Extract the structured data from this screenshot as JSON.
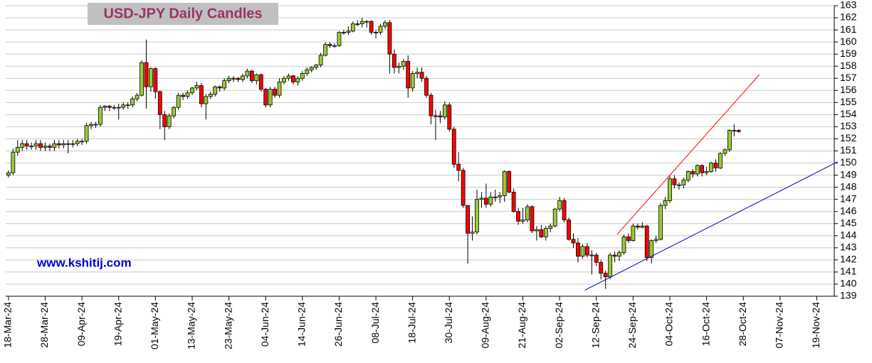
{
  "chart_data": {
    "type": "candlestick",
    "title": "USD-JPY Daily Candles",
    "annotation": "www.kshitij.com",
    "categories": [
      "18-Mar-24",
      null,
      null,
      null,
      null,
      null,
      null,
      null,
      "28-Mar-24",
      null,
      null,
      null,
      null,
      null,
      null,
      null,
      "09-Apr-24",
      null,
      null,
      null,
      null,
      null,
      null,
      null,
      "19-Apr-24",
      null,
      null,
      null,
      null,
      null,
      null,
      null,
      "01-May-24",
      null,
      null,
      null,
      null,
      null,
      null,
      null,
      "13-May-24",
      null,
      null,
      null,
      null,
      null,
      null,
      null,
      "23-May-24",
      null,
      null,
      null,
      null,
      null,
      null,
      null,
      "04-Jun-24",
      null,
      null,
      null,
      null,
      null,
      null,
      null,
      "14-Jun-24",
      null,
      null,
      null,
      null,
      null,
      null,
      null,
      "26-Jun-24",
      null,
      null,
      null,
      null,
      null,
      null,
      null,
      "08-Jul-24",
      null,
      null,
      null,
      null,
      null,
      null,
      null,
      "18-Jul-24",
      null,
      null,
      null,
      null,
      null,
      null,
      null,
      "30-Jul-24",
      null,
      null,
      null,
      null,
      null,
      null,
      null,
      "09-Aug-24",
      null,
      null,
      null,
      null,
      null,
      null,
      null,
      "21-Aug-24",
      null,
      null,
      null,
      null,
      null,
      null,
      null,
      "02-Sep-24",
      null,
      null,
      null,
      null,
      null,
      null,
      null,
      "12-Sep-24",
      null,
      null,
      null,
      null,
      null,
      null,
      null,
      "24-Sep-24",
      null,
      null,
      null,
      null,
      null,
      null,
      null,
      "04-Oct-24",
      null,
      null,
      null,
      null,
      null,
      null,
      null,
      "16-Oct-24",
      null,
      null,
      null,
      null,
      null,
      null,
      null,
      "28-Oct-24",
      null,
      null,
      null,
      null,
      null,
      null,
      null,
      "07-Nov-24",
      null,
      null,
      null,
      null,
      null,
      null,
      null,
      "19-Nov-24",
      null,
      null,
      null
    ],
    "series": [
      {
        "up_color": "#99cc33",
        "down_color": "#ff0000",
        "outline": "#000000",
        "ohlc": [
          [
            149.0,
            149.4,
            148.8,
            149.2
          ],
          [
            149.2,
            151.2,
            149.0,
            150.9
          ],
          [
            150.9,
            151.9,
            150.6,
            151.3
          ],
          [
            151.3,
            151.9,
            151.0,
            151.6
          ],
          [
            151.6,
            151.9,
            151.1,
            151.4
          ],
          [
            151.4,
            151.7,
            151.1,
            151.4
          ],
          [
            151.4,
            151.9,
            151.1,
            151.6
          ],
          [
            151.6,
            151.9,
            151.0,
            151.3
          ],
          [
            151.3,
            151.7,
            151.0,
            151.4
          ],
          [
            151.4,
            151.6,
            151.0,
            151.3
          ],
          [
            151.3,
            151.9,
            151.0,
            151.6
          ],
          [
            151.6,
            151.9,
            151.2,
            151.5
          ],
          [
            151.5,
            151.9,
            151.2,
            151.6
          ],
          [
            151.6,
            151.9,
            150.8,
            151.6
          ],
          [
            151.6,
            151.9,
            151.3,
            151.6
          ],
          [
            151.6,
            152.0,
            151.4,
            151.8
          ],
          [
            151.8,
            152.0,
            151.5,
            151.8
          ],
          [
            151.8,
            153.3,
            151.6,
            153.1
          ],
          [
            153.1,
            153.4,
            152.8,
            153.2
          ],
          [
            153.2,
            153.4,
            152.9,
            153.2
          ],
          [
            153.2,
            154.8,
            153.0,
            154.6
          ],
          [
            154.6,
            154.8,
            154.3,
            154.7
          ],
          [
            154.7,
            154.8,
            154.3,
            154.6
          ],
          [
            154.6,
            154.8,
            154.4,
            154.6
          ],
          [
            154.6,
            154.9,
            153.6,
            154.6
          ],
          [
            154.6,
            155.0,
            154.4,
            154.8
          ],
          [
            154.8,
            155.0,
            154.5,
            154.8
          ],
          [
            154.8,
            155.5,
            154.6,
            155.3
          ],
          [
            155.3,
            155.8,
            155.1,
            155.6
          ],
          [
            155.6,
            158.5,
            155.5,
            158.3
          ],
          [
            158.3,
            160.2,
            154.5,
            156.3
          ],
          [
            156.3,
            157.9,
            155.9,
            157.8
          ],
          [
            157.8,
            157.9,
            155.3,
            155.9
          ],
          [
            155.9,
            156.0,
            152.8,
            154.0
          ],
          [
            154.0,
            154.3,
            151.9,
            153.0
          ],
          [
            153.0,
            154.1,
            152.8,
            153.9
          ],
          [
            153.9,
            154.7,
            153.7,
            154.6
          ],
          [
            154.6,
            155.8,
            154.4,
            155.6
          ],
          [
            155.6,
            155.8,
            155.2,
            155.5
          ],
          [
            155.5,
            156.0,
            155.3,
            155.8
          ],
          [
            155.8,
            156.3,
            155.6,
            156.2
          ],
          [
            156.2,
            156.7,
            156.0,
            156.4
          ],
          [
            156.4,
            156.6,
            154.6,
            154.9
          ],
          [
            154.9,
            155.7,
            153.6,
            155.5
          ],
          [
            155.5,
            155.9,
            155.3,
            155.7
          ],
          [
            155.7,
            156.4,
            155.5,
            156.3
          ],
          [
            156.3,
            156.4,
            155.9,
            156.2
          ],
          [
            156.2,
            157.0,
            156.0,
            156.8
          ],
          [
            156.8,
            157.2,
            156.6,
            157.0
          ],
          [
            157.0,
            157.2,
            156.7,
            157.0
          ],
          [
            157.0,
            157.1,
            156.7,
            156.9
          ],
          [
            156.9,
            157.4,
            156.7,
            157.2
          ],
          [
            157.2,
            157.8,
            157.0,
            157.6
          ],
          [
            157.6,
            157.7,
            156.6,
            156.8
          ],
          [
            156.8,
            157.4,
            156.5,
            157.3
          ],
          [
            157.3,
            157.4,
            155.9,
            156.1
          ],
          [
            156.1,
            156.2,
            154.6,
            154.8
          ],
          [
            154.8,
            156.3,
            154.6,
            156.1
          ],
          [
            156.1,
            156.3,
            155.4,
            155.6
          ],
          [
            155.6,
            157.0,
            155.4,
            156.7
          ],
          [
            156.7,
            157.2,
            156.5,
            157.0
          ],
          [
            157.0,
            157.4,
            156.8,
            157.2
          ],
          [
            157.2,
            157.3,
            156.5,
            156.7
          ],
          [
            156.7,
            157.2,
            156.4,
            157.0
          ],
          [
            157.0,
            157.6,
            156.8,
            157.4
          ],
          [
            157.4,
            157.9,
            157.2,
            157.7
          ],
          [
            157.7,
            158.0,
            157.5,
            157.9
          ],
          [
            157.9,
            158.2,
            157.7,
            158.1
          ],
          [
            158.1,
            159.1,
            157.9,
            158.9
          ],
          [
            158.9,
            160.0,
            158.8,
            159.8
          ],
          [
            159.8,
            160.0,
            159.5,
            159.7
          ],
          [
            159.7,
            159.9,
            159.5,
            159.7
          ],
          [
            159.7,
            160.9,
            159.6,
            160.8
          ],
          [
            160.8,
            161.0,
            160.6,
            160.8
          ],
          [
            160.8,
            161.3,
            160.6,
            160.9
          ],
          [
            160.9,
            161.7,
            160.8,
            161.5
          ],
          [
            161.5,
            161.8,
            161.3,
            161.5
          ],
          [
            161.5,
            162.0,
            161.2,
            161.7
          ],
          [
            161.7,
            161.8,
            161.2,
            161.7
          ],
          [
            161.7,
            161.8,
            160.6,
            160.8
          ],
          [
            160.8,
            161.0,
            160.3,
            160.8
          ],
          [
            160.8,
            161.5,
            160.6,
            161.3
          ],
          [
            161.3,
            161.8,
            161.1,
            161.6
          ],
          [
            161.6,
            161.8,
            157.4,
            159.0
          ],
          [
            159.0,
            159.4,
            157.4,
            157.9
          ],
          [
            157.9,
            158.3,
            157.4,
            158.0
          ],
          [
            158.0,
            158.6,
            157.7,
            158.4
          ],
          [
            158.4,
            158.9,
            155.4,
            156.2
          ],
          [
            156.2,
            157.6,
            155.9,
            157.4
          ],
          [
            157.4,
            157.9,
            157.0,
            157.5
          ],
          [
            157.5,
            157.9,
            156.7,
            157.0
          ],
          [
            157.0,
            157.2,
            155.4,
            155.6
          ],
          [
            155.6,
            155.8,
            153.2,
            153.9
          ],
          [
            153.9,
            154.4,
            151.9,
            153.9
          ],
          [
            153.9,
            154.3,
            153.3,
            153.8
          ],
          [
            153.8,
            155.1,
            153.6,
            154.8
          ],
          [
            154.8,
            155.0,
            152.6,
            152.8
          ],
          [
            152.8,
            153.0,
            149.6,
            149.9
          ],
          [
            149.9,
            150.9,
            148.5,
            149.4
          ],
          [
            149.4,
            149.6,
            146.3,
            146.5
          ],
          [
            146.5,
            146.5,
            141.7,
            144.2
          ],
          [
            144.2,
            145.6,
            143.6,
            144.3
          ],
          [
            144.3,
            147.8,
            144.1,
            147.0
          ],
          [
            147.0,
            147.6,
            146.3,
            147.1
          ],
          [
            147.1,
            148.3,
            146.3,
            146.6
          ],
          [
            146.6,
            147.6,
            146.4,
            147.2
          ],
          [
            147.2,
            147.8,
            146.8,
            147.2
          ],
          [
            147.2,
            147.6,
            146.7,
            147.3
          ],
          [
            147.3,
            149.4,
            146.8,
            149.3
          ],
          [
            149.3,
            149.4,
            147.5,
            147.6
          ],
          [
            147.6,
            147.9,
            145.9,
            146.0
          ],
          [
            146.0,
            146.3,
            144.9,
            145.2
          ],
          [
            145.2,
            146.3,
            145.0,
            145.3
          ],
          [
            145.3,
            146.6,
            145.1,
            146.4
          ],
          [
            146.4,
            146.5,
            144.2,
            144.4
          ],
          [
            144.4,
            144.8,
            143.6,
            144.5
          ],
          [
            144.5,
            144.9,
            143.8,
            143.9
          ],
          [
            143.9,
            144.8,
            143.6,
            144.6
          ],
          [
            144.6,
            145.0,
            144.3,
            144.8
          ],
          [
            144.8,
            146.3,
            144.7,
            146.2
          ],
          [
            146.2,
            147.2,
            146.0,
            146.9
          ],
          [
            146.9,
            147.1,
            145.1,
            145.3
          ],
          [
            145.3,
            145.5,
            143.6,
            143.7
          ],
          [
            143.7,
            144.2,
            143.0,
            143.4
          ],
          [
            143.4,
            143.8,
            141.8,
            142.3
          ],
          [
            142.3,
            143.3,
            142.1,
            143.1
          ],
          [
            143.1,
            143.4,
            142.2,
            142.4
          ],
          [
            142.4,
            142.8,
            140.8,
            142.4
          ],
          [
            142.4,
            142.6,
            141.5,
            141.8
          ],
          [
            141.8,
            142.0,
            140.4,
            140.9
          ],
          [
            140.9,
            141.1,
            139.6,
            140.6
          ],
          [
            140.6,
            142.6,
            140.4,
            142.4
          ],
          [
            142.4,
            142.7,
            141.8,
            142.3
          ],
          [
            142.3,
            142.8,
            141.9,
            142.6
          ],
          [
            142.6,
            144.1,
            142.4,
            143.9
          ],
          [
            143.9,
            144.2,
            143.4,
            143.6
          ],
          [
            143.6,
            145.0,
            143.5,
            144.8
          ],
          [
            144.8,
            145.0,
            144.5,
            144.7
          ],
          [
            144.7,
            145.1,
            144.6,
            144.8
          ],
          [
            144.8,
            144.9,
            141.9,
            142.2
          ],
          [
            142.2,
            143.7,
            141.7,
            143.6
          ],
          [
            143.6,
            144.0,
            143.4,
            143.7
          ],
          [
            143.7,
            146.7,
            143.6,
            146.5
          ],
          [
            146.5,
            147.2,
            146.2,
            146.9
          ],
          [
            146.9,
            149.0,
            146.7,
            148.7
          ],
          [
            148.7,
            149.0,
            147.9,
            148.2
          ],
          [
            148.2,
            148.4,
            147.8,
            148.2
          ],
          [
            148.2,
            148.8,
            147.9,
            148.6
          ],
          [
            148.6,
            149.4,
            148.4,
            149.3
          ],
          [
            149.3,
            149.5,
            148.8,
            149.1
          ],
          [
            149.1,
            149.9,
            148.9,
            149.8
          ],
          [
            149.8,
            149.9,
            148.9,
            149.2
          ],
          [
            149.2,
            149.7,
            149.0,
            149.3
          ],
          [
            149.3,
            150.1,
            149.2,
            150.0
          ],
          [
            150.0,
            150.3,
            149.3,
            149.6
          ],
          [
            149.6,
            150.9,
            149.5,
            150.8
          ],
          [
            150.8,
            151.2,
            150.6,
            151.1
          ],
          [
            151.1,
            152.8,
            150.9,
            152.7
          ],
          [
            152.7,
            153.2,
            152.2,
            152.7
          ],
          [
            152.7,
            152.8,
            152.5,
            152.6
          ],
          null,
          null,
          null,
          null,
          null,
          null,
          null,
          null,
          null,
          null,
          null,
          null,
          null,
          null,
          null,
          null,
          null,
          null,
          null,
          null
        ]
      }
    ],
    "trendlines": [
      {
        "color": "#ff0000",
        "points": [
          [
            132.5,
            144.1
          ],
          [
            163.5,
            157.3
          ]
        ]
      },
      {
        "color": "#0000cc",
        "points": [
          [
            125.5,
            139.5
          ],
          [
            180.5,
            150.1
          ]
        ]
      }
    ],
    "xlim": [
      -0.6,
      179.8
    ],
    "ylim": [
      139,
      163
    ],
    "yticks": [
      139,
      140,
      141,
      142,
      143,
      144,
      145,
      146,
      147,
      148,
      149,
      150,
      151,
      152,
      153,
      154,
      155,
      156,
      157,
      158,
      159,
      160,
      161,
      162,
      163
    ],
    "grid": true
  }
}
